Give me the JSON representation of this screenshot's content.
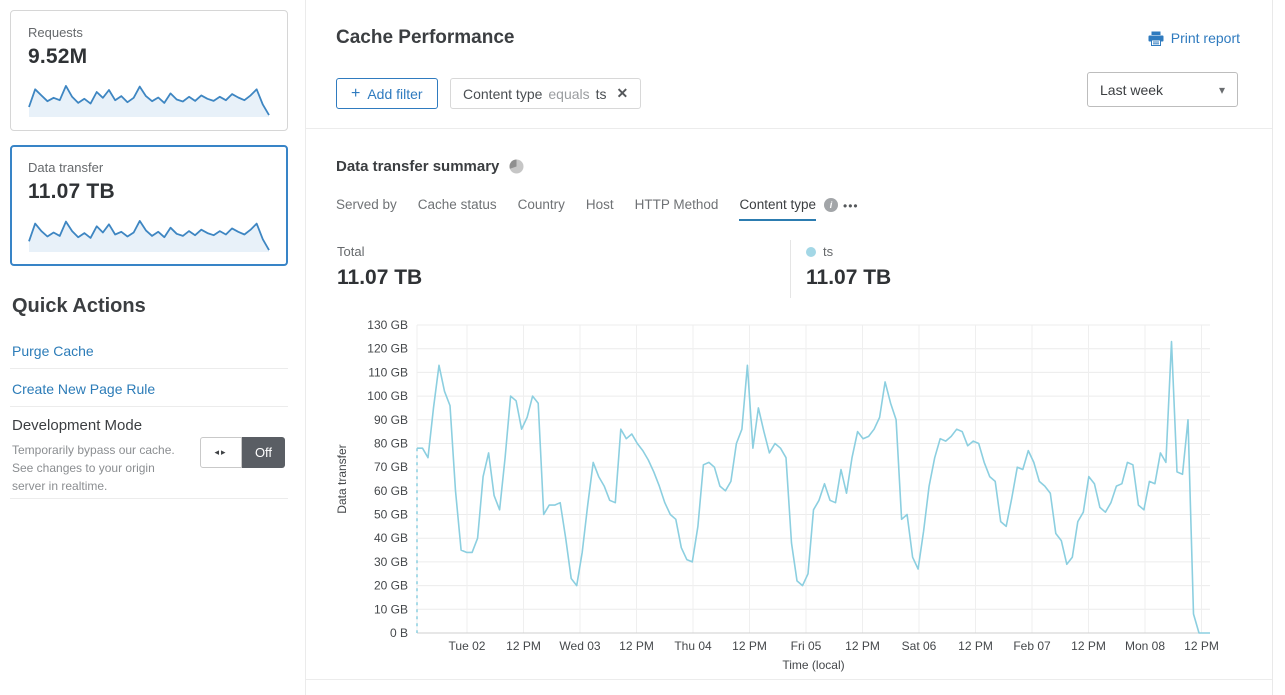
{
  "colors": {
    "accent_blue": "#2f7bbf",
    "link_blue": "#2c7cb8",
    "chart_line": "#8ccfe0",
    "legend_dot": "#a3d7e6",
    "sparkline_stroke": "#3e86c2",
    "sparkline_fill": "#e8f1f9",
    "toggle_off_bg": "#5a5e64"
  },
  "icons": {
    "plus": "+",
    "close": "✕",
    "chevron_down": "▾",
    "more": "•••",
    "dev_toggle_arrows": "◂▸",
    "info": "i"
  },
  "sidebar": {
    "cards": [
      {
        "label": "Requests",
        "value": "9.52M",
        "selected": false,
        "sparkline": [
          28,
          80,
          62,
          45,
          55,
          48,
          90,
          58,
          40,
          52,
          38,
          72,
          55,
          78,
          48,
          60,
          42,
          55,
          88,
          60,
          45,
          56,
          40,
          68,
          50,
          44,
          58,
          46,
          62,
          52,
          46,
          58,
          48,
          66,
          56,
          48,
          62,
          80,
          35,
          4
        ]
      },
      {
        "label": "Data transfer",
        "value": "11.07 TB",
        "selected": true,
        "sparkline": [
          30,
          82,
          60,
          44,
          56,
          46,
          88,
          60,
          42,
          54,
          40,
          74,
          56,
          80,
          50,
          58,
          44,
          56,
          90,
          62,
          46,
          58,
          42,
          70,
          52,
          46,
          60,
          48,
          64,
          54,
          48,
          60,
          50,
          68,
          58,
          50,
          64,
          82,
          36,
          4
        ]
      }
    ],
    "quick_actions": {
      "title": "Quick Actions",
      "links": [
        {
          "label": "Purge Cache"
        },
        {
          "label": "Create New Page Rule"
        }
      ],
      "dev_mode": {
        "title": "Development Mode",
        "description": "Temporarily bypass our cache. See changes to your origin server in realtime.",
        "toggle_label": "Off"
      }
    }
  },
  "header": {
    "title": "Cache Performance",
    "print_report": "Print report",
    "add_filter": "Add filter",
    "filter_pill": {
      "field": "Content type",
      "operator": "equals",
      "value": "ts"
    },
    "time_range": "Last week"
  },
  "summary": {
    "title": "Data transfer summary",
    "tabs": [
      {
        "label": "Served by",
        "active": false
      },
      {
        "label": "Cache status",
        "active": false
      },
      {
        "label": "Country",
        "active": false
      },
      {
        "label": "Host",
        "active": false
      },
      {
        "label": "HTTP Method",
        "active": false
      },
      {
        "label": "Content type",
        "active": true,
        "info": true
      }
    ],
    "total_label": "Total",
    "total_value": "11.07 TB",
    "legend": {
      "name": "ts",
      "value": "11.07 TB"
    }
  },
  "chart_data": {
    "type": "line",
    "title": "Data transfer summary",
    "xlabel": "Time (local)",
    "ylabel": "Data transfer",
    "unit": "GB",
    "ylim": [
      0,
      130
    ],
    "grid": true,
    "legend_position": "above-right",
    "leading_dashed_drop": true,
    "x_ticks": [
      "Tue 02",
      "12 PM",
      "Wed 03",
      "12 PM",
      "Thu 04",
      "12 PM",
      "Fri 05",
      "12 PM",
      "Sat 06",
      "12 PM",
      "Feb 07",
      "12 PM",
      "Mon 08",
      "12 PM"
    ],
    "y_ticks": [
      "0 B",
      "10 GB",
      "20 GB",
      "30 GB",
      "40 GB",
      "50 GB",
      "60 GB",
      "70 GB",
      "80 GB",
      "90 GB",
      "100 GB",
      "110 GB",
      "120 GB",
      "130 GB"
    ],
    "series": [
      {
        "name": "ts",
        "values": [
          78,
          78,
          74,
          95,
          113,
          102,
          96,
          60,
          35,
          34,
          34,
          40,
          66,
          76,
          58,
          52,
          74,
          100,
          98,
          86,
          91,
          100,
          97,
          50,
          54,
          54,
          55,
          40,
          23,
          20,
          34,
          54,
          72,
          66,
          62,
          56,
          55,
          86,
          82,
          84,
          80,
          77,
          73,
          68,
          62,
          55,
          50,
          48,
          36,
          31,
          30,
          45,
          71,
          72,
          70,
          62,
          60,
          64,
          80,
          86,
          113,
          78,
          95,
          85,
          76,
          80,
          78,
          74,
          38,
          22,
          20,
          25,
          52,
          56,
          63,
          56,
          55,
          69,
          59,
          74,
          85,
          82,
          83,
          86,
          91,
          106,
          97,
          90,
          48,
          50,
          32,
          27,
          43,
          62,
          74,
          82,
          81,
          83,
          86,
          85,
          79,
          81,
          80,
          72,
          66,
          64,
          47,
          45,
          57,
          70,
          69,
          77,
          72,
          64,
          62,
          59,
          42,
          39,
          29,
          32,
          47,
          51,
          66,
          63,
          53,
          51,
          55,
          62,
          63,
          72,
          71,
          54,
          52,
          64,
          63,
          76,
          72,
          123,
          68,
          67,
          90,
          8,
          0,
          0,
          0
        ]
      }
    ]
  }
}
